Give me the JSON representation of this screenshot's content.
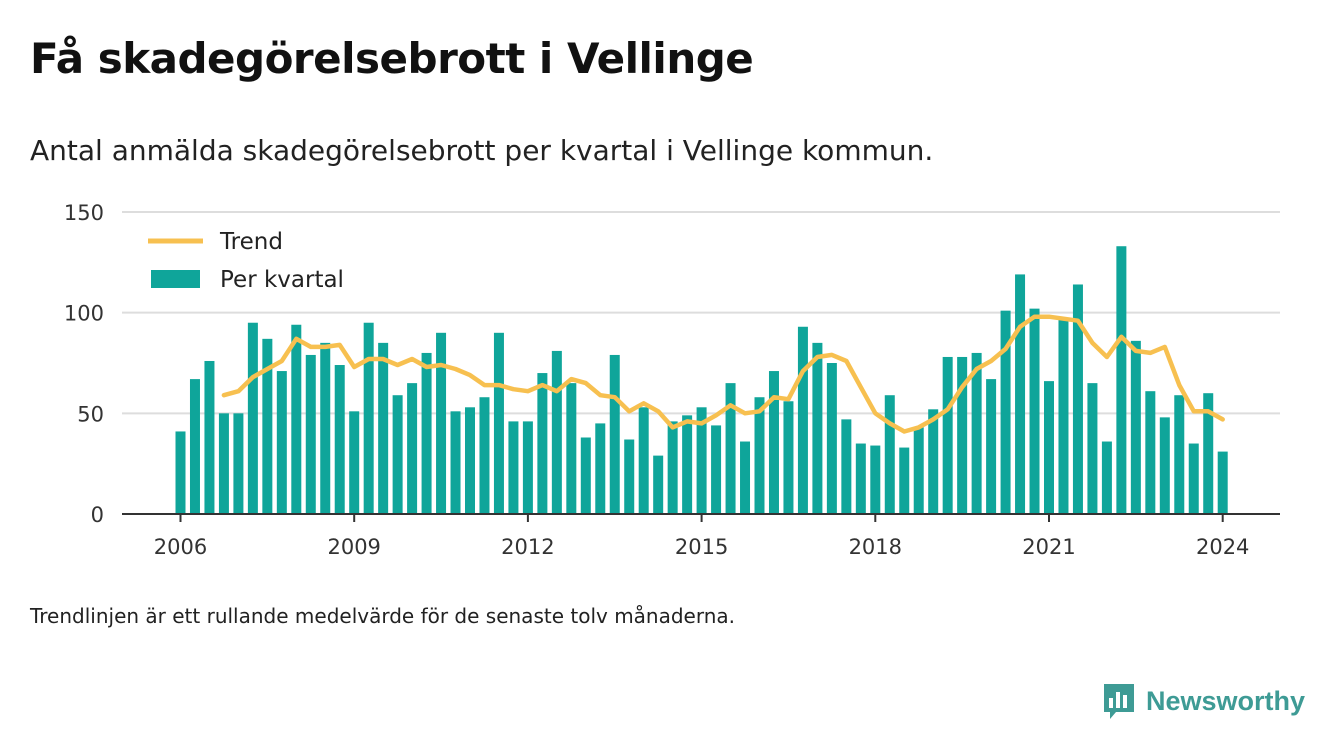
{
  "header": {
    "title": "Få skadegörelsebrott i Vellinge",
    "subtitle": "Antal anmälda skadegörelsebrott per kvartal i Vellinge kommun."
  },
  "footer": {
    "note": "Trendlinjen är ett rullande medelvärde för de senaste tolv månaderna.",
    "brand": "Newsworthy"
  },
  "colors": {
    "bar": "#0fa59a",
    "trend": "#f7c050",
    "grid": "#dddddd",
    "axis": "#333333",
    "brand": "#3e9b95"
  },
  "chart_data": {
    "type": "bar",
    "x": [
      "2006 Q1",
      "2006 Q2",
      "2006 Q3",
      "2006 Q4",
      "2007 Q1",
      "2007 Q2",
      "2007 Q3",
      "2007 Q4",
      "2008 Q1",
      "2008 Q2",
      "2008 Q3",
      "2008 Q4",
      "2009 Q1",
      "2009 Q2",
      "2009 Q3",
      "2009 Q4",
      "2010 Q1",
      "2010 Q2",
      "2010 Q3",
      "2010 Q4",
      "2011 Q1",
      "2011 Q2",
      "2011 Q3",
      "2011 Q4",
      "2012 Q1",
      "2012 Q2",
      "2012 Q3",
      "2012 Q4",
      "2013 Q1",
      "2013 Q2",
      "2013 Q3",
      "2013 Q4",
      "2014 Q1",
      "2014 Q2",
      "2014 Q3",
      "2014 Q4",
      "2015 Q1",
      "2015 Q2",
      "2015 Q3",
      "2015 Q4",
      "2016 Q1",
      "2016 Q2",
      "2016 Q3",
      "2016 Q4",
      "2017 Q1",
      "2017 Q2",
      "2017 Q3",
      "2017 Q4",
      "2018 Q1",
      "2018 Q2",
      "2018 Q3",
      "2018 Q4",
      "2019 Q1",
      "2019 Q2",
      "2019 Q3",
      "2019 Q4",
      "2020 Q1",
      "2020 Q2",
      "2020 Q3",
      "2020 Q4",
      "2021 Q1",
      "2021 Q2",
      "2021 Q3",
      "2021 Q4",
      "2022 Q1",
      "2022 Q2",
      "2022 Q3",
      "2022 Q4",
      "2023 Q1",
      "2023 Q2",
      "2023 Q3",
      "2023 Q4",
      "2024 Q1"
    ],
    "series": [
      {
        "name": "Per kvartal",
        "type": "bar",
        "values": [
          41,
          67,
          76,
          50,
          50,
          95,
          87,
          71,
          94,
          79,
          85,
          74,
          51,
          95,
          85,
          59,
          65,
          80,
          90,
          51,
          53,
          58,
          90,
          46,
          46,
          70,
          81,
          65,
          38,
          45,
          79,
          37,
          53,
          29,
          46,
          49,
          53,
          44,
          65,
          36,
          58,
          71,
          56,
          93,
          85,
          75,
          47,
          35,
          34,
          59,
          33,
          43,
          52,
          78,
          78,
          80,
          67,
          101,
          119,
          102,
          66,
          97,
          114,
          65,
          36,
          133,
          86,
          61,
          48,
          59,
          35,
          60,
          31
        ]
      },
      {
        "name": "Trend",
        "type": "line",
        "values": [
          null,
          null,
          null,
          59,
          61,
          68,
          72,
          76,
          87,
          83,
          83,
          84,
          73,
          77,
          77,
          74,
          77,
          73,
          74,
          72,
          69,
          64,
          64,
          62,
          61,
          64,
          61,
          67,
          65,
          59,
          58,
          51,
          55,
          51,
          43,
          46,
          45,
          49,
          54,
          50,
          51,
          58,
          57,
          71,
          78,
          79,
          76,
          63,
          50,
          45,
          41,
          43,
          47,
          52,
          63,
          72,
          76,
          82,
          93,
          98,
          98,
          97,
          96,
          85,
          78,
          88,
          81,
          80,
          83,
          64,
          51,
          51,
          47
        ]
      }
    ],
    "x_ticks": [
      "2006",
      "2009",
      "2012",
      "2015",
      "2018",
      "2021",
      "2024"
    ],
    "y_ticks": [
      0,
      50,
      100,
      150
    ],
    "ylim": [
      0,
      150
    ],
    "legend": {
      "placement": "top-left",
      "entries": [
        "Trend",
        "Per kvartal"
      ]
    },
    "grid": "horizontal"
  }
}
